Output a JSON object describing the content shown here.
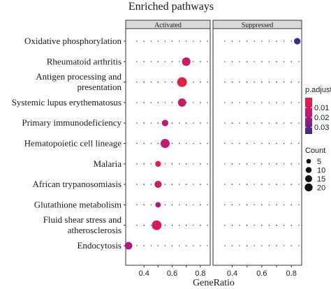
{
  "chart_data": {
    "type": "scatter",
    "title": "Enriched pathways",
    "xlabel": "GeneRatio",
    "facets": [
      "Activated",
      "Suppressed"
    ],
    "xlim": [
      0.27,
      0.87
    ],
    "xticks": [
      0.4,
      0.5,
      0.6,
      0.7,
      0.8
    ],
    "xtick_labels": [
      "0.4",
      "",
      "0.6",
      "",
      "0.8"
    ],
    "categories": [
      "Oxidative phosphorylation",
      "Rheumatoid arthritis",
      "Antigen processing and\npresentation",
      "Systemic lupus erythematosus",
      "Primary immunodeficiency",
      "Hematopoietic cell lineage",
      "Malaria",
      "African trypanosomiasis",
      "Glutathione metabolism",
      "Fluid shear stress and\natherosclerosis",
      "Endocytosis"
    ],
    "points": [
      {
        "category": "Oxidative phosphorylation",
        "facet": "Suppressed",
        "x": 0.84,
        "count": 8,
        "p_adjust": 0.035
      },
      {
        "category": "Rheumatoid arthritis",
        "facet": "Activated",
        "x": 0.7,
        "count": 16,
        "p_adjust": 0.011
      },
      {
        "category": "Antigen processing and\npresentation",
        "facet": "Activated",
        "x": 0.67,
        "count": 22,
        "p_adjust": 0.002
      },
      {
        "category": "Systemic lupus erythematosus",
        "facet": "Activated",
        "x": 0.67,
        "count": 15,
        "p_adjust": 0.011
      },
      {
        "category": "Primary immunodeficiency",
        "facet": "Activated",
        "x": 0.55,
        "count": 8,
        "p_adjust": 0.015
      },
      {
        "category": "Hematopoietic cell lineage",
        "facet": "Activated",
        "x": 0.55,
        "count": 19,
        "p_adjust": 0.015
      },
      {
        "category": "Malaria",
        "facet": "Activated",
        "x": 0.5,
        "count": 6,
        "p_adjust": 0.002
      },
      {
        "category": "African trypanosomiasis",
        "facet": "Activated",
        "x": 0.5,
        "count": 10,
        "p_adjust": 0.008
      },
      {
        "category": "Glutathione metabolism",
        "facet": "Activated",
        "x": 0.5,
        "count": 5,
        "p_adjust": 0.02
      },
      {
        "category": "Fluid shear stress and\natherosclerosis",
        "facet": "Activated",
        "x": 0.49,
        "count": 22,
        "p_adjust": 0.008
      },
      {
        "category": "Endocytosis",
        "facet": "Activated",
        "x": 0.29,
        "count": 12,
        "p_adjust": 0.02
      }
    ],
    "color_legend": {
      "title": "p.adjust",
      "ticks": [
        0.01,
        0.02,
        0.03
      ],
      "range": [
        0.0,
        0.037
      ],
      "colors": [
        "#e8203a",
        "#b7177f",
        "#2e2f8e"
      ]
    },
    "size_legend": {
      "title": "Count",
      "values": [
        5,
        10,
        15,
        20
      ]
    },
    "grid": true,
    "legend_position": "right"
  },
  "colors": {
    "strip_fill": "#d9d9d9",
    "panel_border": "#333333",
    "grid_dot": "#333333"
  }
}
